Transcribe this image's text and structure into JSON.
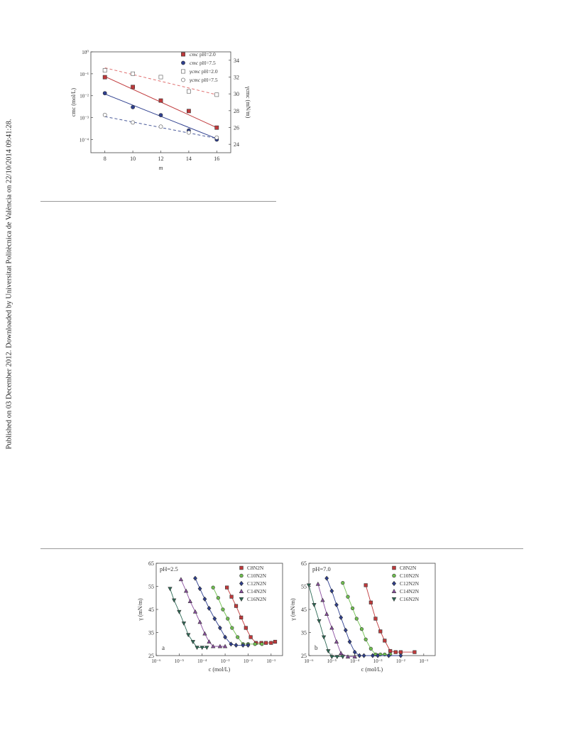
{
  "page": {
    "sidebar_text": "Published on 03 December 2012. Downloaded by Universitat Politècnica de València on 22/10/2014 09:41:28."
  },
  "chart_data": [
    {
      "type": "scatter",
      "xlabel": "m",
      "ylabel_left": "cmc (mol/L)",
      "ylabel_right": "γcmc (mN/m)",
      "x_ticks": [
        "8",
        "10",
        "12",
        "14",
        "16"
      ],
      "y_left_ticks": [
        "10⁰",
        "10⁻¹",
        "10⁻²",
        "10⁻³",
        "10⁻⁴"
      ],
      "y_right_ticks": [
        "34",
        "32",
        "30",
        "28",
        "26",
        "24"
      ],
      "xlim": [
        7,
        17
      ],
      "ylim_left_log": [
        -4.6,
        0
      ],
      "ylim_right": [
        23,
        35
      ],
      "legend": "top-right",
      "series": [
        {
          "name": "cmc pH=2.0",
          "legend_italic": "cmc",
          "legend_rest": "pH=2.0",
          "axis": "left",
          "marker": "filled-square",
          "color": "#c0393b",
          "fit": "solid",
          "x": [
            8,
            10,
            12,
            14,
            16
          ],
          "y": [
            0.07,
            0.025,
            0.006,
            0.002,
            0.00035
          ],
          "fit_y": [
            0.075,
            0.00035
          ]
        },
        {
          "name": "cmc pH=7.5",
          "legend_italic": "cmc",
          "legend_rest": "pH=7.5",
          "axis": "left",
          "marker": "filled-circle",
          "color": "#2e3f8f",
          "fit": "solid",
          "x": [
            8,
            10,
            12,
            14,
            16
          ],
          "y": [
            0.013,
            0.003,
            0.0013,
            0.00026,
            0.0001
          ],
          "fit_y": [
            0.012,
            0.00011
          ]
        },
        {
          "name": "γcmc pH=2.0",
          "legend_italic": "γcmc",
          "legend_rest": "pH=2.0",
          "axis": "right",
          "marker": "open-square",
          "color": "#555555",
          "fit": "dashed",
          "fit_color": "#e07070",
          "x": [
            8,
            10,
            12,
            14,
            16
          ],
          "y": [
            32.8,
            32.4,
            32.0,
            30.3,
            29.9
          ],
          "fit_y": [
            33.1,
            29.9
          ]
        },
        {
          "name": "γcmc pH=7.5",
          "legend_italic": "γcmc",
          "legend_rest": "pH=7.5",
          "axis": "right",
          "marker": "open-circle",
          "color": "#555555",
          "fit": "dashed",
          "fit_color": "#4a5a9a",
          "x": [
            8,
            10,
            12,
            14,
            16
          ],
          "y": [
            27.5,
            26.6,
            26.1,
            25.4,
            24.8
          ],
          "fit_y": [
            27.3,
            24.7
          ]
        }
      ]
    },
    {
      "type": "scatter",
      "panel_letter": "a",
      "annotation": "pH=2.5",
      "xlabel": "c (mol/L)",
      "ylabel": "γ (mN/m)",
      "x_ticks": [
        "10⁻⁶",
        "10⁻⁵",
        "10⁻⁴",
        "10⁻³",
        "10⁻²",
        "10⁻¹"
      ],
      "y_ticks": [
        "65",
        "55",
        "45",
        "35",
        "25"
      ],
      "xlim_log": [
        -6,
        -0.5
      ],
      "ylim": [
        25,
        65
      ],
      "legend": "top-right",
      "series": [
        {
          "name": "C8N2N",
          "marker": "square",
          "color": "#c0393b",
          "x": [
            0.0012,
            0.0019,
            0.003,
            0.005,
            0.008,
            0.013,
            0.022,
            0.038,
            0.06,
            0.1,
            0.15
          ],
          "y": [
            54.5,
            50.5,
            46.5,
            41.5,
            37,
            33,
            30.5,
            30.5,
            30.5,
            30.5,
            31
          ]
        },
        {
          "name": "C10N2N",
          "marker": "circle",
          "color": "#6fbf4f",
          "x": [
            0.0003,
            0.0005,
            0.0008,
            0.0013,
            0.002,
            0.0035,
            0.006,
            0.01,
            0.02,
            0.04
          ],
          "y": [
            54.5,
            50,
            45,
            41,
            37,
            33,
            30,
            30,
            30,
            30
          ]
        },
        {
          "name": "C12N2N",
          "marker": "diamond",
          "color": "#2e3f8f",
          "x": [
            5e-05,
            8e-05,
            0.00013,
            0.0002,
            0.00035,
            0.0006,
            0.001,
            0.0018,
            0.003,
            0.006,
            0.01
          ],
          "y": [
            58.5,
            54,
            49.5,
            45.5,
            41,
            37,
            33,
            30,
            29.5,
            29.5,
            29.5
          ]
        },
        {
          "name": "C14N2N",
          "marker": "triangle-up",
          "color": "#8b4fa0",
          "x": [
            1.2e-05,
            2e-05,
            3e-05,
            5e-05,
            8e-05,
            0.00013,
            0.0002,
            0.0003,
            0.0006,
            0.001
          ],
          "y": [
            58,
            53,
            48.5,
            44,
            39.5,
            34.5,
            31,
            29,
            29,
            29
          ]
        },
        {
          "name": "C16N2N",
          "marker": "triangle-down",
          "color": "#2e6b57",
          "x": [
            4e-06,
            6e-06,
            1e-05,
            1.6e-05,
            2.5e-05,
            4e-05,
            6e-05,
            0.0001,
            0.00016
          ],
          "y": [
            54,
            49,
            44,
            39,
            34,
            31,
            28.5,
            28.5,
            28.5
          ]
        }
      ]
    },
    {
      "type": "scatter",
      "panel_letter": "b",
      "annotation": "pH=7.0",
      "xlabel": "c (mol/L)",
      "ylabel": "γ (mN/m)",
      "x_ticks": [
        "10⁻⁶",
        "10⁻⁵",
        "10⁻⁴",
        "10⁻³",
        "10⁻²",
        "10⁻¹"
      ],
      "y_ticks": [
        "65",
        "55",
        "45",
        "35",
        "25"
      ],
      "xlim_log": [
        -6,
        -0.5
      ],
      "ylim": [
        25,
        65
      ],
      "legend": "top-right",
      "series": [
        {
          "name": "C8N2N",
          "marker": "square",
          "color": "#c0393b",
          "x": [
            0.0003,
            0.0005,
            0.0008,
            0.0013,
            0.002,
            0.0035,
            0.006,
            0.01,
            0.04
          ],
          "y": [
            55.5,
            48,
            41,
            35.5,
            31.5,
            27,
            26.5,
            26.5,
            26.5
          ]
        },
        {
          "name": "C10N2N",
          "marker": "circle",
          "color": "#6fbf4f",
          "x": [
            3e-05,
            5e-05,
            8e-05,
            0.00012,
            0.0002,
            0.0003,
            0.0005,
            0.0008,
            0.0013,
            0.002,
            0.0035
          ],
          "y": [
            56.5,
            50.5,
            45.5,
            41,
            36.5,
            32,
            28,
            25.5,
            25.5,
            25.5,
            25.5
          ]
        },
        {
          "name": "C12N2N",
          "marker": "diamond",
          "color": "#2e3f8f",
          "x": [
            6e-06,
            1e-05,
            1.6e-05,
            2.5e-05,
            4e-05,
            6e-05,
            0.0001,
            0.00016,
            0.00025,
            0.0006,
            0.001,
            0.003,
            0.01
          ],
          "y": [
            58.5,
            53,
            47,
            41.5,
            36,
            31,
            26.5,
            25,
            25,
            25,
            25,
            25,
            25
          ]
        },
        {
          "name": "C14N2N",
          "marker": "triangle-up",
          "color": "#8b4fa0",
          "x": [
            2.5e-06,
            4e-06,
            6e-06,
            1e-05,
            1.6e-05,
            2.5e-05,
            5e-05,
            0.0001
          ],
          "y": [
            56,
            49,
            43,
            37,
            31,
            26,
            24.5,
            24.5
          ]
        },
        {
          "name": "C16N2N",
          "marker": "triangle-down",
          "color": "#2e6b57",
          "x": [
            1e-06,
            1.7e-06,
            2.8e-06,
            4.5e-06,
            7e-06,
            1e-05,
            1.7e-05,
            3e-05
          ],
          "y": [
            55.5,
            47,
            40,
            33,
            27,
            24.5,
            24.5,
            24.5
          ]
        }
      ]
    }
  ]
}
